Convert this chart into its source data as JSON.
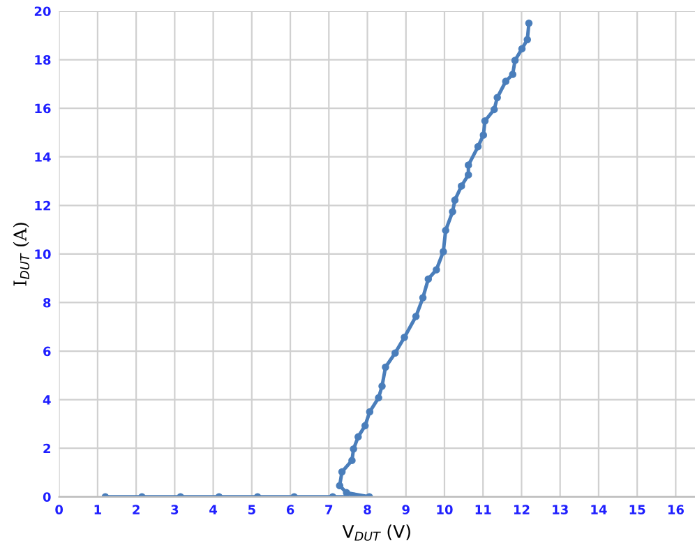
{
  "chart_data": {
    "type": "line",
    "xlabel": "V$_{DUT}$ (V)",
    "ylabel": "I$_{DUT}$ (A)",
    "xlim": [
      0,
      16.5
    ],
    "xticks": [
      0,
      1,
      2,
      3,
      4,
      5,
      6,
      7,
      8,
      9,
      10,
      11,
      12,
      13,
      14,
      15,
      16
    ],
    "ylim": [
      0,
      20
    ],
    "yticks": [
      0,
      2,
      4,
      6,
      8,
      10,
      12,
      14,
      16,
      18,
      20
    ],
    "grid": true,
    "marker": "circle",
    "line_style": "solid",
    "legend": false,
    "series": [
      {
        "color": "#4a7ebb",
        "x": [
          1.2,
          2.15,
          3.15,
          4.15,
          5.15,
          6.1,
          7.1,
          8.05,
          7.46,
          7.28,
          7.34,
          7.6,
          7.64,
          7.76,
          7.94,
          8.06,
          8.29,
          8.38,
          8.47,
          8.72,
          8.96,
          9.26,
          9.44,
          9.58,
          9.79,
          9.97,
          10.03,
          10.21,
          10.27,
          10.44,
          10.62,
          10.62,
          10.87,
          11.01,
          11.05,
          11.29,
          11.37,
          11.59,
          11.77,
          11.83,
          12.01,
          12.15,
          12.19
        ],
        "values": [
          0,
          0,
          0,
          0,
          0,
          0,
          0,
          0,
          0.17,
          0.46,
          1.03,
          1.5,
          1.97,
          2.47,
          2.93,
          3.5,
          4.08,
          4.56,
          5.34,
          5.92,
          6.57,
          7.43,
          8.2,
          8.97,
          9.35,
          10.1,
          10.97,
          11.74,
          12.22,
          12.8,
          13.26,
          13.66,
          14.42,
          14.9,
          15.48,
          15.95,
          16.44,
          17.11,
          17.4,
          17.97,
          18.45,
          18.83,
          19.5
        ]
      }
    ]
  }
}
